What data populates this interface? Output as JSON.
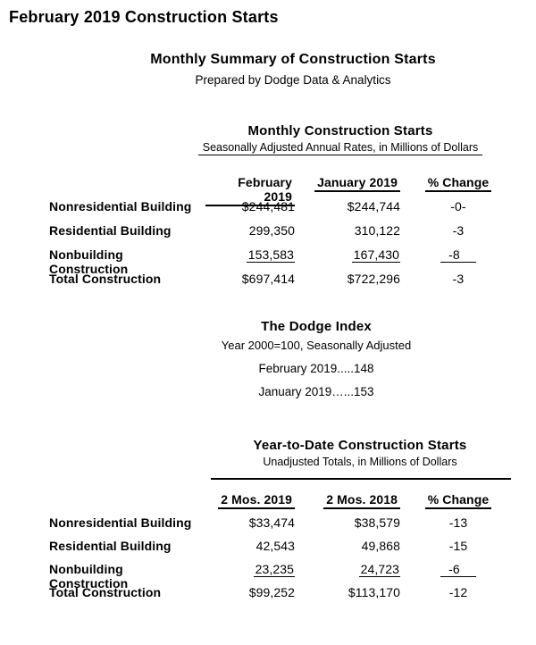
{
  "page": {
    "title": "February 2019 Construction Starts"
  },
  "summary": {
    "title": "Monthly Summary of Construction Starts",
    "subtitle": "Prepared by Dodge Data & Analytics"
  },
  "monthly": {
    "title": "Monthly Construction Starts",
    "subtitle": "Seasonally Adjusted Annual Rates, in Millions of Dollars",
    "columns": [
      "February 2019",
      "January 2019",
      "% Change"
    ],
    "rows": [
      {
        "label": "Nonresidential Building",
        "feb": "$244,481",
        "jan": "$244,744",
        "change": "-0-"
      },
      {
        "label": "Residential Building",
        "feb": "299,350",
        "jan": "310,122",
        "change": "-3"
      },
      {
        "label": "Nonbuilding Construction",
        "feb": "153,583",
        "jan": "167,430",
        "change": "-8",
        "underlined": true
      },
      {
        "label": "Total Construction",
        "feb": "$697,414",
        "jan": "$722,296",
        "change": "-3"
      }
    ]
  },
  "dodge_index": {
    "title": "The Dodge Index",
    "subtitle": "Year 2000=100, Seasonally Adjusted",
    "lines": [
      "February 2019.....148",
      "January 2019…...153"
    ]
  },
  "ytd": {
    "title": "Year-to-Date Construction Starts",
    "subtitle": "Unadjusted Totals, in Millions of Dollars",
    "columns": [
      "2 Mos. 2019",
      "2 Mos. 2018",
      "% Change"
    ],
    "rows": [
      {
        "label": "Nonresidential Building",
        "y2019": "$33,474",
        "y2018": "$38,579",
        "change": "-13"
      },
      {
        "label": "Residential Building",
        "y2019": "42,543",
        "y2018": "49,868",
        "change": "-15"
      },
      {
        "label": "Nonbuilding Construction",
        "y2019": "23,235",
        "y2018": "24,723",
        "change": "-6",
        "underlined": true
      },
      {
        "label": "Total Construction",
        "y2019": "$99,252",
        "y2018": "$113,170",
        "change": "-12"
      }
    ]
  },
  "colors": {
    "text": "#000000",
    "background": "#ffffff"
  }
}
